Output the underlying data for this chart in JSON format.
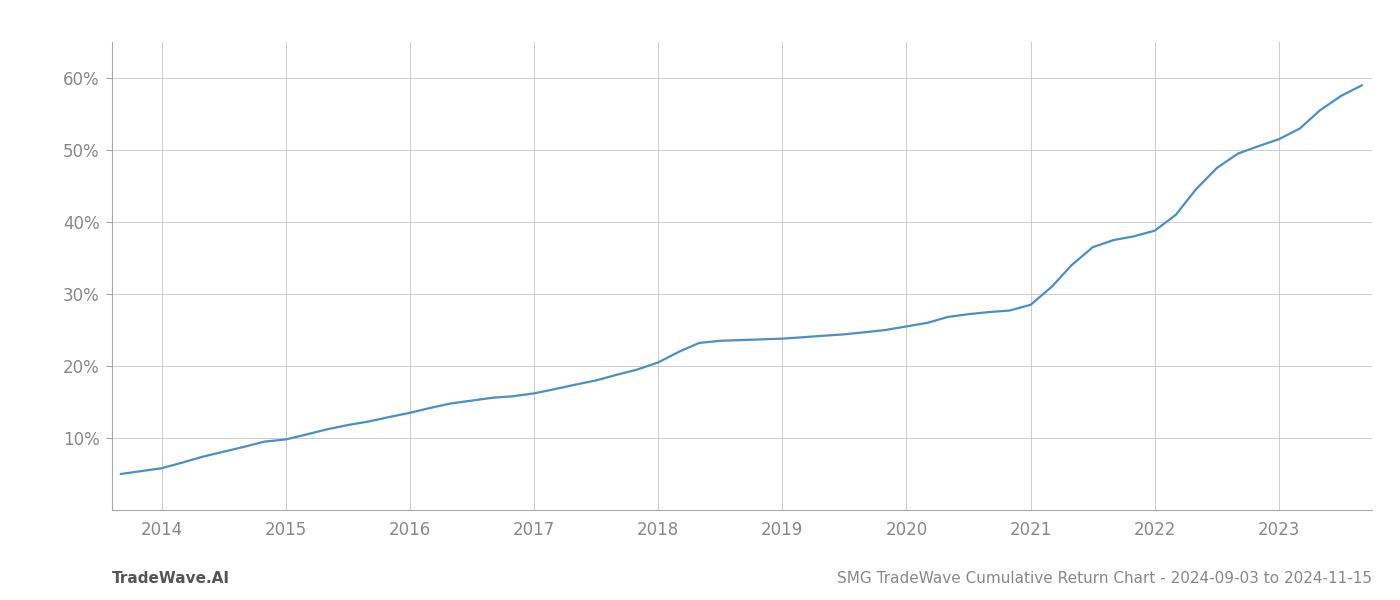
{
  "title": "SMG TradeWave Cumulative Return Chart - 2024-09-03 to 2024-11-15",
  "watermark": "TradeWave.AI",
  "line_color": "#4a90c4",
  "background_color": "#ffffff",
  "grid_color": "#cccccc",
  "x_years": [
    2014,
    2015,
    2016,
    2017,
    2018,
    2019,
    2020,
    2021,
    2022,
    2023
  ],
  "x_data": [
    2013.67,
    2014.0,
    2014.17,
    2014.33,
    2014.5,
    2014.67,
    2014.83,
    2015.0,
    2015.17,
    2015.33,
    2015.5,
    2015.67,
    2015.83,
    2016.0,
    2016.17,
    2016.33,
    2016.5,
    2016.67,
    2016.83,
    2017.0,
    2017.17,
    2017.33,
    2017.5,
    2017.67,
    2017.83,
    2018.0,
    2018.17,
    2018.33,
    2018.5,
    2018.67,
    2018.83,
    2019.0,
    2019.17,
    2019.33,
    2019.5,
    2019.67,
    2019.83,
    2020.0,
    2020.17,
    2020.33,
    2020.5,
    2020.67,
    2020.83,
    2021.0,
    2021.17,
    2021.33,
    2021.5,
    2021.67,
    2021.83,
    2022.0,
    2022.17,
    2022.33,
    2022.5,
    2022.67,
    2022.83,
    2023.0,
    2023.17,
    2023.33,
    2023.5,
    2023.67
  ],
  "y_data": [
    5.0,
    5.8,
    6.6,
    7.4,
    8.1,
    8.8,
    9.5,
    9.8,
    10.5,
    11.2,
    11.8,
    12.3,
    12.9,
    13.5,
    14.2,
    14.8,
    15.2,
    15.6,
    15.8,
    16.2,
    16.8,
    17.4,
    18.0,
    18.8,
    19.5,
    20.5,
    22.0,
    23.2,
    23.5,
    23.6,
    23.7,
    23.8,
    24.0,
    24.2,
    24.4,
    24.7,
    25.0,
    25.5,
    26.0,
    26.8,
    27.2,
    27.5,
    27.7,
    28.5,
    31.0,
    34.0,
    36.5,
    37.5,
    38.0,
    38.8,
    41.0,
    44.5,
    47.5,
    49.5,
    50.5,
    51.5,
    53.0,
    55.5,
    57.5,
    59.0
  ],
  "ylim": [
    0,
    65
  ],
  "xlim": [
    2013.6,
    2023.75
  ],
  "yticks": [
    10,
    20,
    30,
    40,
    50,
    60
  ],
  "ytick_labels": [
    "10%",
    "20%",
    "30%",
    "40%",
    "50%",
    "60%"
  ],
  "title_fontsize": 11,
  "watermark_fontsize": 11,
  "tick_fontsize": 12,
  "line_width": 1.6
}
